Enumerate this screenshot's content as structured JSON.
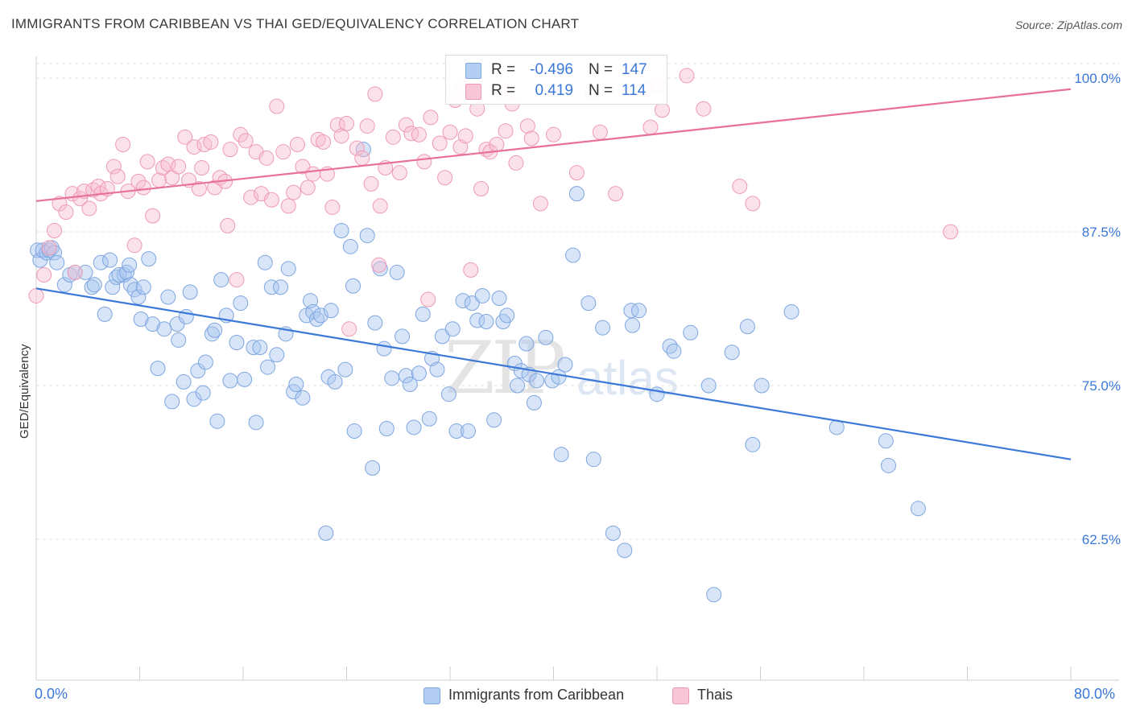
{
  "title": "IMMIGRANTS FROM CARIBBEAN VS THAI GED/EQUIVALENCY CORRELATION CHART",
  "source": "Source: ZipAtlas.com",
  "watermark": {
    "zip": "ZIP",
    "atlas": "atlas"
  },
  "colors": {
    "blue": "#3b78d8",
    "blue_fill": "#a8c6f0",
    "pink": "#e8709a",
    "pink_fill": "#f6bcd0",
    "grid": "#e3e3e3"
  },
  "legend_top": {
    "rows": [
      {
        "r_label": "R =",
        "r_value": "-0.496",
        "n_label": "N =",
        "n_value": "147"
      },
      {
        "r_label": "R =",
        "r_value": "0.419",
        "n_label": "N =",
        "n_value": "114"
      }
    ]
  },
  "legend_bottom": [
    "Immigrants from Caribbean",
    "Thais"
  ],
  "chart_data": {
    "type": "scatter",
    "title": "IMMIGRANTS FROM CARIBBEAN VS THAI GED/EQUIVALENCY CORRELATION CHART",
    "xlabel": "",
    "ylabel": "GED/Equivalency",
    "x_ticks": [
      "0.0%",
      "80.0%"
    ],
    "y_ticks": [
      "100.0%",
      "87.5%",
      "75.0%",
      "62.5%"
    ],
    "xlim": [
      0,
      80
    ],
    "ylim": [
      50,
      100.5
    ],
    "grid": true,
    "legend": "bottom",
    "series": [
      {
        "name": "Immigrants from Caribbean",
        "r": -0.496,
        "n": 147,
        "trend": {
          "x": [
            0,
            80
          ],
          "y": [
            82.9,
            69.0
          ]
        },
        "points": [
          [
            0.1,
            86.0
          ],
          [
            0.3,
            85.2
          ],
          [
            0.5,
            86.0
          ],
          [
            0.8,
            85.8
          ],
          [
            1.0,
            86.0
          ],
          [
            1.2,
            86.2
          ],
          [
            1.4,
            85.8
          ],
          [
            1.6,
            85.0
          ],
          [
            2.2,
            83.2
          ],
          [
            2.6,
            84.0
          ],
          [
            3.0,
            84.2
          ],
          [
            3.8,
            84.2
          ],
          [
            4.3,
            83.0
          ],
          [
            4.5,
            83.2
          ],
          [
            5.0,
            85.0
          ],
          [
            5.3,
            80.8
          ],
          [
            5.7,
            85.2
          ],
          [
            5.9,
            83.0
          ],
          [
            6.2,
            83.8
          ],
          [
            6.8,
            84.0
          ],
          [
            6.4,
            84.0
          ],
          [
            7.0,
            84.2
          ],
          [
            7.2,
            84.8
          ],
          [
            7.3,
            83.2
          ],
          [
            7.6,
            82.8
          ],
          [
            7.9,
            82.2
          ],
          [
            8.1,
            80.4
          ],
          [
            8.3,
            83.0
          ],
          [
            8.7,
            85.3
          ],
          [
            9.0,
            80.0
          ],
          [
            9.4,
            76.4
          ],
          [
            9.9,
            79.6
          ],
          [
            10.2,
            82.2
          ],
          [
            10.5,
            73.7
          ],
          [
            10.9,
            80.0
          ],
          [
            11.0,
            78.7
          ],
          [
            11.4,
            75.3
          ],
          [
            11.6,
            80.6
          ],
          [
            11.9,
            82.6
          ],
          [
            12.2,
            73.9
          ],
          [
            12.5,
            76.2
          ],
          [
            12.9,
            74.4
          ],
          [
            13.1,
            76.9
          ],
          [
            13.6,
            79.2
          ],
          [
            13.8,
            79.5
          ],
          [
            14.0,
            72.1
          ],
          [
            14.3,
            83.6
          ],
          [
            14.7,
            80.7
          ],
          [
            15.0,
            75.4
          ],
          [
            15.5,
            78.5
          ],
          [
            15.8,
            81.7
          ],
          [
            16.1,
            75.5
          ],
          [
            16.8,
            78.1
          ],
          [
            17.0,
            72.0
          ],
          [
            17.3,
            78.1
          ],
          [
            17.7,
            85.0
          ],
          [
            17.9,
            76.5
          ],
          [
            18.2,
            83.0
          ],
          [
            18.6,
            77.5
          ],
          [
            18.9,
            83.0
          ],
          [
            19.3,
            79.2
          ],
          [
            19.5,
            84.5
          ],
          [
            19.9,
            74.5
          ],
          [
            20.1,
            75.1
          ],
          [
            20.6,
            74.0
          ],
          [
            20.9,
            80.7
          ],
          [
            21.2,
            81.9
          ],
          [
            21.4,
            81.0
          ],
          [
            21.7,
            80.4
          ],
          [
            22.0,
            80.7
          ],
          [
            22.4,
            63.0
          ],
          [
            22.6,
            75.7
          ],
          [
            22.8,
            81.1
          ],
          [
            23.1,
            75.3
          ],
          [
            23.6,
            87.6
          ],
          [
            23.9,
            76.3
          ],
          [
            24.3,
            86.3
          ],
          [
            24.6,
            71.3
          ],
          [
            24.5,
            83.1
          ],
          [
            25.3,
            94.2
          ],
          [
            25.6,
            87.2
          ],
          [
            26.0,
            68.3
          ],
          [
            26.2,
            80.1
          ],
          [
            26.6,
            84.5
          ],
          [
            26.9,
            78.0
          ],
          [
            27.1,
            71.5
          ],
          [
            27.5,
            75.6
          ],
          [
            27.9,
            84.2
          ],
          [
            28.3,
            79.0
          ],
          [
            28.6,
            75.8
          ],
          [
            28.9,
            75.1
          ],
          [
            29.2,
            71.6
          ],
          [
            29.6,
            76.0
          ],
          [
            29.9,
            80.8
          ],
          [
            30.4,
            72.3
          ],
          [
            30.6,
            77.2
          ],
          [
            31.0,
            76.3
          ],
          [
            31.4,
            79.0
          ],
          [
            31.9,
            74.3
          ],
          [
            32.2,
            79.6
          ],
          [
            32.5,
            71.3
          ],
          [
            33.0,
            81.9
          ],
          [
            33.4,
            71.3
          ],
          [
            33.7,
            81.7
          ],
          [
            34.1,
            80.3
          ],
          [
            34.5,
            82.3
          ],
          [
            34.8,
            80.2
          ],
          [
            35.4,
            72.2
          ],
          [
            35.8,
            82.1
          ],
          [
            36.1,
            80.2
          ],
          [
            36.4,
            80.7
          ],
          [
            37.0,
            76.8
          ],
          [
            37.2,
            75.0
          ],
          [
            37.5,
            76.2
          ],
          [
            37.9,
            78.4
          ],
          [
            38.1,
            75.9
          ],
          [
            38.5,
            73.6
          ],
          [
            38.7,
            75.4
          ],
          [
            39.4,
            78.9
          ],
          [
            39.9,
            75.4
          ],
          [
            40.4,
            75.7
          ],
          [
            40.6,
            69.4
          ],
          [
            40.9,
            76.7
          ],
          [
            41.5,
            85.6
          ],
          [
            41.8,
            90.6
          ],
          [
            42.7,
            81.7
          ],
          [
            43.1,
            69.0
          ],
          [
            43.8,
            79.7
          ],
          [
            44.6,
            63.0
          ],
          [
            45.5,
            61.6
          ],
          [
            46.0,
            81.1
          ],
          [
            46.1,
            79.9
          ],
          [
            46.6,
            81.1
          ],
          [
            48.0,
            74.3
          ],
          [
            49.0,
            78.2
          ],
          [
            49.3,
            77.8
          ],
          [
            50.6,
            79.3
          ],
          [
            52.0,
            75.0
          ],
          [
            52.4,
            58.0
          ],
          [
            53.8,
            77.7
          ],
          [
            55.0,
            79.8
          ],
          [
            55.4,
            70.2
          ],
          [
            56.1,
            75.0
          ],
          [
            58.4,
            81.0
          ],
          [
            61.9,
            71.6
          ],
          [
            65.7,
            70.5
          ],
          [
            65.9,
            68.5
          ],
          [
            68.2,
            65.0
          ]
        ]
      },
      {
        "name": "Thais",
        "r": 0.419,
        "n": 114,
        "trend": {
          "x": [
            0,
            80
          ],
          "y": [
            90.0,
            99.1
          ]
        },
        "points": [
          [
            0.0,
            82.3
          ],
          [
            0.6,
            84.0
          ],
          [
            1.0,
            86.2
          ],
          [
            1.4,
            87.6
          ],
          [
            1.8,
            89.8
          ],
          [
            2.3,
            89.1
          ],
          [
            2.8,
            90.6
          ],
          [
            3.0,
            84.2
          ],
          [
            3.4,
            90.2
          ],
          [
            3.7,
            90.8
          ],
          [
            4.1,
            89.4
          ],
          [
            4.4,
            90.9
          ],
          [
            4.8,
            91.2
          ],
          [
            5.0,
            90.6
          ],
          [
            5.5,
            91.0
          ],
          [
            6.0,
            92.8
          ],
          [
            6.3,
            92.0
          ],
          [
            6.7,
            94.6
          ],
          [
            7.1,
            90.8
          ],
          [
            7.6,
            86.4
          ],
          [
            7.9,
            91.6
          ],
          [
            8.3,
            91.1
          ],
          [
            8.6,
            93.2
          ],
          [
            9.0,
            88.8
          ],
          [
            9.5,
            91.7
          ],
          [
            9.8,
            92.7
          ],
          [
            10.2,
            93.0
          ],
          [
            10.5,
            91.9
          ],
          [
            11.0,
            92.8
          ],
          [
            11.5,
            95.2
          ],
          [
            11.8,
            91.7
          ],
          [
            12.2,
            94.4
          ],
          [
            12.6,
            91.0
          ],
          [
            13.0,
            94.6
          ],
          [
            13.5,
            94.8
          ],
          [
            13.8,
            91.1
          ],
          [
            14.2,
            91.9
          ],
          [
            14.6,
            91.6
          ],
          [
            15.0,
            94.2
          ],
          [
            15.5,
            83.6
          ],
          [
            15.8,
            95.4
          ],
          [
            16.2,
            94.9
          ],
          [
            16.6,
            90.3
          ],
          [
            17.0,
            94.0
          ],
          [
            17.4,
            90.6
          ],
          [
            17.8,
            93.5
          ],
          [
            18.2,
            90.1
          ],
          [
            18.6,
            97.7
          ],
          [
            19.1,
            94.0
          ],
          [
            19.5,
            89.6
          ],
          [
            19.9,
            90.7
          ],
          [
            20.2,
            94.6
          ],
          [
            20.6,
            92.8
          ],
          [
            21.0,
            91.1
          ],
          [
            21.4,
            92.2
          ],
          [
            21.8,
            95.0
          ],
          [
            22.2,
            94.8
          ],
          [
            22.5,
            92.2
          ],
          [
            22.9,
            89.5
          ],
          [
            23.3,
            96.2
          ],
          [
            23.6,
            95.3
          ],
          [
            24.0,
            96.3
          ],
          [
            24.2,
            79.6
          ],
          [
            24.8,
            94.3
          ],
          [
            25.2,
            93.5
          ],
          [
            25.6,
            96.1
          ],
          [
            25.9,
            91.4
          ],
          [
            26.2,
            98.7
          ],
          [
            26.6,
            89.6
          ],
          [
            27.0,
            92.7
          ],
          [
            27.6,
            95.2
          ],
          [
            28.1,
            92.3
          ],
          [
            28.6,
            96.2
          ],
          [
            29.0,
            95.5
          ],
          [
            29.6,
            95.4
          ],
          [
            30.0,
            93.2
          ],
          [
            30.5,
            96.8
          ],
          [
            31.2,
            94.7
          ],
          [
            31.6,
            91.9
          ],
          [
            32.0,
            95.6
          ],
          [
            32.4,
            98.2
          ],
          [
            32.8,
            94.4
          ],
          [
            33.2,
            95.3
          ],
          [
            33.6,
            84.4
          ],
          [
            34.1,
            97.5
          ],
          [
            34.4,
            91.0
          ],
          [
            34.8,
            94.2
          ],
          [
            35.1,
            94.0
          ],
          [
            35.6,
            94.6
          ],
          [
            36.3,
            95.7
          ],
          [
            36.8,
            97.9
          ],
          [
            37.1,
            93.1
          ],
          [
            38.0,
            96.1
          ],
          [
            38.3,
            95.1
          ],
          [
            40.0,
            95.4
          ],
          [
            41.8,
            92.3
          ],
          [
            43.6,
            95.6
          ],
          [
            44.8,
            90.6
          ],
          [
            47.5,
            96.0
          ],
          [
            48.0,
            99.5
          ],
          [
            48.4,
            97.4
          ],
          [
            50.3,
            100.2
          ],
          [
            51.6,
            97.5
          ],
          [
            54.4,
            91.2
          ],
          [
            55.4,
            89.8
          ],
          [
            70.7,
            87.5
          ],
          [
            33.0,
            99.3
          ],
          [
            36.0,
            99.0
          ],
          [
            43.0,
            98.8
          ],
          [
            47.2,
            99.1
          ],
          [
            30.3,
            82.0
          ],
          [
            12.8,
            92.7
          ],
          [
            14.8,
            88.0
          ],
          [
            26.5,
            84.8
          ],
          [
            39.0,
            89.8
          ]
        ]
      }
    ]
  }
}
